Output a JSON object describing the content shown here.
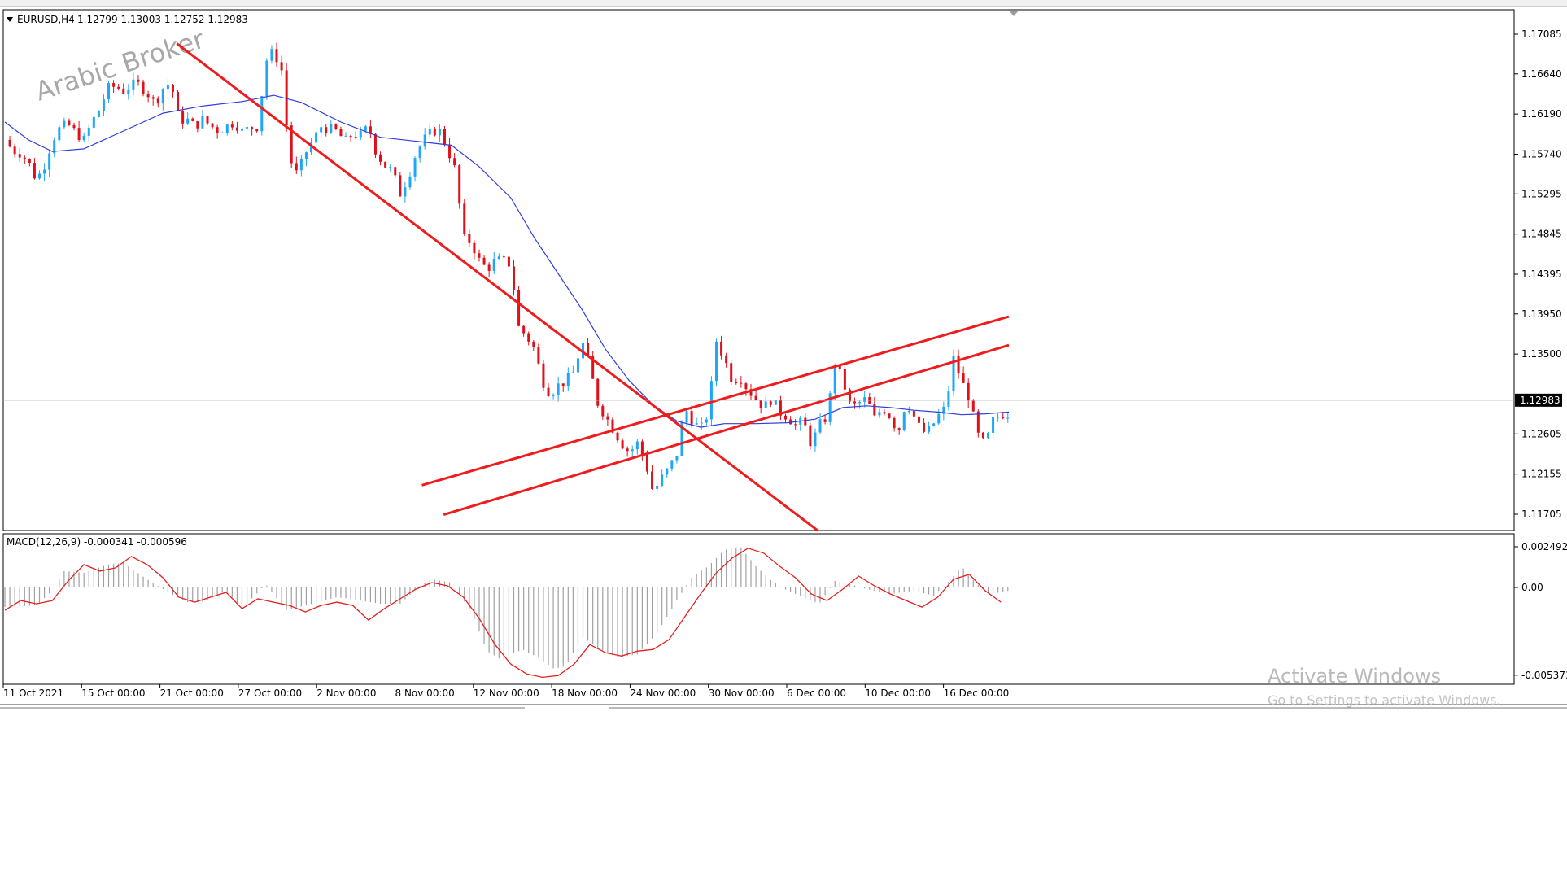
{
  "symbol_info": {
    "label": "EURUSD,H4",
    "ohlc": "1.12799 1.13003 1.12752 1.12983"
  },
  "macd_info": {
    "label": "MACD(12,26,9) -0.000341 -0.000596"
  },
  "watermark": {
    "text": "Arabic Broker"
  },
  "windows_notice": {
    "title": "Activate Windows",
    "subtitle": "Go to Settings to activate Windows."
  },
  "colors": {
    "bull": "#1ea7f7",
    "bear": "#e0101b",
    "ma_line": "#2f3ed8",
    "trendline": "#ee1c1c",
    "signal": "#e22020",
    "histogram": "#a0a0a0",
    "grid_frame": "#000000",
    "price_tag_bg": "#000000",
    "price_tag_text": "#ffffff"
  },
  "chart_data": [
    {
      "type": "candlestick",
      "title": "EURUSD,H4",
      "price_axis_ticks": [
        "1.17085",
        "1.16640",
        "1.16190",
        "1.15740",
        "1.15295",
        "1.14845",
        "1.14395",
        "1.13950",
        "1.13500",
        "1.12605",
        "1.12155",
        "1.11705"
      ],
      "price_axis_values": [
        1.17085,
        1.1664,
        1.1619,
        1.1574,
        1.15295,
        1.14845,
        1.14395,
        1.1395,
        1.135,
        1.12605,
        1.12155,
        1.11705
      ],
      "current_price": "1.12983",
      "current_price_value": 1.12983,
      "ylim": [
        1.1146,
        1.1731
      ],
      "time_axis_labels": [
        "11 Oct 2021",
        "15 Oct 00:00",
        "21 Oct 00:00",
        "27 Oct 00:00",
        "2 Nov 00:00",
        "8 Nov 00:00",
        "12 Nov 00:00",
        "18 Nov 00:00",
        "24 Nov 00:00",
        "30 Nov 00:00",
        "6 Dec 00:00",
        "10 Dec 00:00",
        "16 Dec 00:00"
      ],
      "close_path": [
        [
          0,
          1.159
        ],
        [
          4,
          1.1578
        ],
        [
          8,
          1.1575
        ],
        [
          12,
          1.1565
        ],
        [
          16,
          1.1545
        ],
        [
          20,
          1.1562
        ],
        [
          24,
          1.159
        ],
        [
          28,
          1.1604
        ],
        [
          32,
          1.1607
        ],
        [
          36,
          1.1598
        ],
        [
          40,
          1.159
        ],
        [
          44,
          1.161
        ],
        [
          48,
          1.1625
        ],
        [
          52,
          1.1648
        ],
        [
          56,
          1.165
        ],
        [
          60,
          1.1645
        ],
        [
          64,
          1.1652
        ],
        [
          68,
          1.1652
        ],
        [
          72,
          1.1643
        ],
        [
          76,
          1.163
        ],
        [
          80,
          1.1648
        ],
        [
          84,
          1.1655
        ],
        [
          88,
          1.1612
        ],
        [
          92,
          1.1613
        ],
        [
          96,
          1.1605
        ],
        [
          100,
          1.1613
        ],
        [
          104,
          1.1606
        ],
        [
          108,
          1.16
        ],
        [
          112,
          1.1605
        ],
        [
          116,
          1.161
        ],
        [
          120,
          1.16
        ],
        [
          124,
          1.1603
        ],
        [
          128,
          1.1605
        ],
        [
          132,
          1.1678
        ],
        [
          136,
          1.169
        ],
        [
          140,
          1.1668
        ],
        [
          144,
          1.157
        ],
        [
          148,
          1.155
        ],
        [
          152,
          1.1575
        ],
        [
          156,
          1.159
        ],
        [
          160,
          1.1605
        ],
        [
          164,
          1.1602
        ],
        [
          168,
          1.16
        ],
        [
          172,
          1.1588
        ],
        [
          176,
          1.1597
        ],
        [
          180,
          1.1595
        ],
        [
          184,
          1.1605
        ],
        [
          188,
          1.1575
        ],
        [
          192,
          1.1562
        ],
        [
          196,
          1.1555
        ],
        [
          200,
          1.153
        ],
        [
          204,
          1.1548
        ],
        [
          208,
          1.1575
        ],
        [
          212,
          1.159
        ],
        [
          216,
          1.16
        ],
        [
          220,
          1.16
        ],
        [
          224,
          1.158
        ],
        [
          228,
          1.1555
        ],
        [
          232,
          1.148
        ],
        [
          236,
          1.1475
        ],
        [
          240,
          1.1455
        ],
        [
          244,
          1.1445
        ],
        [
          248,
          1.1455
        ],
        [
          252,
          1.1455
        ],
        [
          256,
          1.145
        ],
        [
          260,
          1.138
        ],
        [
          264,
          1.137
        ],
        [
          268,
          1.1355
        ],
        [
          272,
          1.132
        ],
        [
          276,
          1.1305
        ],
        [
          280,
          1.1315
        ],
        [
          284,
          1.132
        ],
        [
          288,
          1.133
        ],
        [
          292,
          1.1365
        ],
        [
          296,
          1.1335
        ],
        [
          300,
          1.1295
        ],
        [
          304,
          1.128
        ],
        [
          308,
          1.1265
        ],
        [
          312,
          1.125
        ],
        [
          316,
          1.124
        ],
        [
          320,
          1.125
        ],
        [
          324,
          1.123
        ],
        [
          328,
          1.1195
        ],
        [
          332,
          1.121
        ],
        [
          336,
          1.1222
        ],
        [
          340,
          1.1238
        ],
        [
          344,
          1.129
        ],
        [
          348,
          1.1275
        ],
        [
          352,
          1.1265
        ],
        [
          356,
          1.1285
        ],
        [
          360,
          1.1365
        ],
        [
          364,
          1.1345
        ],
        [
          368,
          1.132
        ],
        [
          372,
          1.1325
        ],
        [
          376,
          1.131
        ],
        [
          380,
          1.13
        ],
        [
          384,
          1.129
        ],
        [
          388,
          1.13
        ],
        [
          392,
          1.1285
        ],
        [
          396,
          1.128
        ],
        [
          400,
          1.127
        ],
        [
          404,
          1.1275
        ],
        [
          408,
          1.1248
        ],
        [
          412,
          1.127
        ],
        [
          416,
          1.128
        ],
        [
          420,
          1.134
        ],
        [
          424,
          1.132
        ],
        [
          428,
          1.129
        ],
        [
          432,
          1.1295
        ],
        [
          436,
          1.13
        ],
        [
          440,
          1.1278
        ],
        [
          444,
          1.129
        ],
        [
          448,
          1.128
        ],
        [
          452,
          1.1262
        ],
        [
          456,
          1.1298
        ],
        [
          460,
          1.128
        ],
        [
          464,
          1.1262
        ],
        [
          468,
          1.1265
        ],
        [
          472,
          1.128
        ],
        [
          476,
          1.129
        ],
        [
          480,
          1.1345
        ],
        [
          484,
          1.132
        ],
        [
          488,
          1.13
        ],
        [
          492,
          1.126
        ],
        [
          496,
          1.1248
        ],
        [
          500,
          1.1275
        ],
        [
          504,
          1.1283
        ],
        [
          508,
          1.1283
        ]
      ],
      "moving_average": [
        [
          0,
          1.161
        ],
        [
          12,
          1.159
        ],
        [
          24,
          1.1577
        ],
        [
          40,
          1.158
        ],
        [
          60,
          1.16
        ],
        [
          80,
          1.162
        ],
        [
          100,
          1.1628
        ],
        [
          120,
          1.1633
        ],
        [
          136,
          1.164
        ],
        [
          150,
          1.1632
        ],
        [
          170,
          1.161
        ],
        [
          190,
          1.1593
        ],
        [
          210,
          1.1588
        ],
        [
          226,
          1.1584
        ],
        [
          240,
          1.156
        ],
        [
          256,
          1.1525
        ],
        [
          268,
          1.148
        ],
        [
          280,
          1.144
        ],
        [
          292,
          1.14
        ],
        [
          304,
          1.1355
        ],
        [
          316,
          1.132
        ],
        [
          328,
          1.1293
        ],
        [
          340,
          1.1275
        ],
        [
          352,
          1.1268
        ],
        [
          364,
          1.1272
        ],
        [
          380,
          1.1272
        ],
        [
          396,
          1.1273
        ],
        [
          410,
          1.1277
        ],
        [
          424,
          1.129
        ],
        [
          436,
          1.1292
        ],
        [
          448,
          1.129
        ],
        [
          460,
          1.1287
        ],
        [
          472,
          1.1285
        ],
        [
          484,
          1.1282
        ],
        [
          496,
          1.1283
        ],
        [
          508,
          1.1285
        ]
      ],
      "trendlines": [
        {
          "from": [
            87,
            1.1698
          ],
          "to": [
            415,
            1.1146
          ]
        },
        {
          "from": [
            211,
            1.1203
          ],
          "to": [
            508,
            1.1392
          ]
        },
        {
          "from": [
            222,
            1.117
          ],
          "to": [
            508,
            1.136
          ]
        }
      ]
    },
    {
      "type": "histogram+line",
      "title": "MACD(12,26,9) -0.000341 -0.000596",
      "axis_ticks": [
        "0.002492",
        "0.00",
        "-0.005373"
      ],
      "axis_values": [
        0.002492,
        0.0,
        -0.005373
      ],
      "ylim": [
        -0.005373,
        0.0026
      ],
      "histogram": [
        [
          0,
          -0.0012
        ],
        [
          16,
          -0.0011
        ],
        [
          24,
          -0.0002
        ],
        [
          30,
          0.001
        ],
        [
          40,
          0.0009
        ],
        [
          52,
          0.0014
        ],
        [
          60,
          0.0015
        ],
        [
          72,
          0.0005
        ],
        [
          84,
          -0.0004
        ],
        [
          92,
          -0.0009
        ],
        [
          100,
          -0.0009
        ],
        [
          112,
          -0.0002
        ],
        [
          120,
          -0.0013
        ],
        [
          132,
          0.0002
        ],
        [
          142,
          -0.0014
        ],
        [
          152,
          -0.0011
        ],
        [
          168,
          -0.0006
        ],
        [
          180,
          -0.0008
        ],
        [
          190,
          -0.001
        ],
        [
          200,
          -0.001
        ],
        [
          210,
          0.0001
        ],
        [
          216,
          0.0005
        ],
        [
          226,
          0.0003
        ],
        [
          236,
          -0.0015
        ],
        [
          244,
          -0.0039
        ],
        [
          252,
          -0.0045
        ],
        [
          258,
          -0.004
        ],
        [
          262,
          -0.0038
        ],
        [
          270,
          -0.0043
        ],
        [
          278,
          -0.005
        ],
        [
          284,
          -0.0048
        ],
        [
          292,
          -0.003
        ],
        [
          300,
          -0.0037
        ],
        [
          310,
          -0.0043
        ],
        [
          320,
          -0.0041
        ],
        [
          330,
          -0.0028
        ],
        [
          340,
          -0.0008
        ],
        [
          348,
          0.0007
        ],
        [
          356,
          0.0013
        ],
        [
          364,
          0.0023
        ],
        [
          372,
          0.0025
        ],
        [
          380,
          0.0013
        ],
        [
          388,
          0.0004
        ],
        [
          396,
          -0.0002
        ],
        [
          404,
          -0.0006
        ],
        [
          412,
          -0.001
        ],
        [
          420,
          0.0004
        ],
        [
          428,
          0.0002
        ],
        [
          436,
          -0.0001
        ],
        [
          448,
          -0.0004
        ],
        [
          460,
          -0.0002
        ],
        [
          470,
          -0.0005
        ],
        [
          478,
          0.0004
        ],
        [
          484,
          0.0013
        ],
        [
          492,
          0.0002
        ],
        [
          498,
          -0.0004
        ],
        [
          504,
          -0.0003
        ],
        [
          508,
          -0.0002
        ]
      ],
      "signal": [
        [
          0,
          -0.0014
        ],
        [
          8,
          -0.0008
        ],
        [
          16,
          -0.001
        ],
        [
          24,
          -0.0008
        ],
        [
          32,
          0.0004
        ],
        [
          40,
          0.0014
        ],
        [
          48,
          0.001
        ],
        [
          56,
          0.0012
        ],
        [
          64,
          0.0019
        ],
        [
          72,
          0.0014
        ],
        [
          80,
          0.0006
        ],
        [
          88,
          -0.0006
        ],
        [
          96,
          -0.0009
        ],
        [
          104,
          -0.0006
        ],
        [
          112,
          -0.0003
        ],
        [
          120,
          -0.0013
        ],
        [
          128,
          -0.0007
        ],
        [
          136,
          -0.0009
        ],
        [
          144,
          -0.0011
        ],
        [
          152,
          -0.0015
        ],
        [
          160,
          -0.0011
        ],
        [
          168,
          -0.0009
        ],
        [
          176,
          -0.0011
        ],
        [
          184,
          -0.002
        ],
        [
          192,
          -0.0013
        ],
        [
          200,
          -0.0007
        ],
        [
          208,
          -0.0001
        ],
        [
          216,
          0.0003
        ],
        [
          224,
          0.0001
        ],
        [
          232,
          -0.0006
        ],
        [
          240,
          -0.0019
        ],
        [
          248,
          -0.0035
        ],
        [
          256,
          -0.0047
        ],
        [
          264,
          -0.0053
        ],
        [
          272,
          -0.0055
        ],
        [
          280,
          -0.0054
        ],
        [
          288,
          -0.0047
        ],
        [
          296,
          -0.0035
        ],
        [
          304,
          -0.004
        ],
        [
          312,
          -0.0042
        ],
        [
          320,
          -0.0039
        ],
        [
          328,
          -0.0038
        ],
        [
          336,
          -0.0032
        ],
        [
          344,
          -0.0018
        ],
        [
          352,
          -0.0004
        ],
        [
          360,
          0.0009
        ],
        [
          368,
          0.0018
        ],
        [
          376,
          0.0024
        ],
        [
          384,
          0.0021
        ],
        [
          392,
          0.0013
        ],
        [
          400,
          0.0006
        ],
        [
          408,
          -0.0004
        ],
        [
          416,
          -0.0008
        ],
        [
          424,
          -0.0001
        ],
        [
          432,
          0.0007
        ],
        [
          440,
          0.0001
        ],
        [
          448,
          -0.0004
        ],
        [
          456,
          -0.0008
        ],
        [
          464,
          -0.0012
        ],
        [
          472,
          -0.0006
        ],
        [
          480,
          0.0005
        ],
        [
          488,
          0.0008
        ],
        [
          496,
          -0.0002
        ],
        [
          504,
          -0.0009
        ]
      ]
    }
  ]
}
